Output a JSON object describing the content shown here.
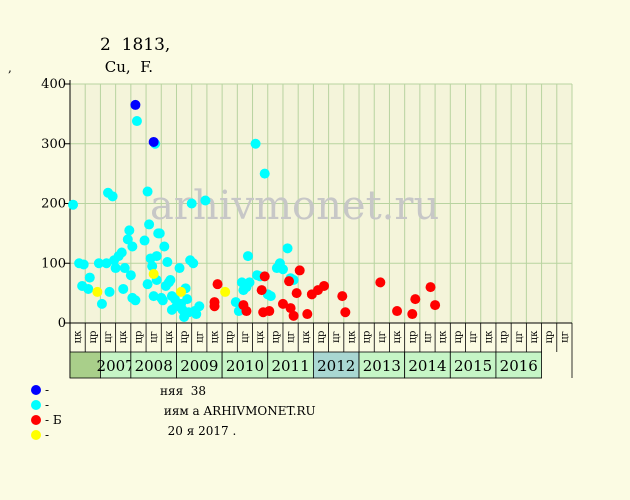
{
  "header": {
    "title": "2 \u0006\u0006\u0006\u0006 1813, \u0006\u0006\u0006 \u0006",
    "subtitle": "\u0006\u0006\u0006 Cu, \u0006\u0006\u0006 F.",
    "y_unit": "\u0006\u0006, \u0006\u0006"
  },
  "watermark": "arhivmonet.ru",
  "legend": {
    "items": [
      {
        "label": "- \u0006\u0006\u0006",
        "color": "#0000ff"
      },
      {
        "label": "- \u0006\u0006\u0006",
        "color": "#00ffff"
      },
      {
        "label": "- \u0006\u0006\u0006\u0006\u0006Б",
        "color": "#ff0000"
      },
      {
        "label": "- \u0006\u0006",
        "color": "#ffff00"
      }
    ]
  },
  "footer": {
    "line1": "\u0006\u0006\u0006\u0006\u0006няя \u0006\u0006 38 \u0006\u0006",
    "line2": "\u0006 \u0006\u0006\u0006\u0006\u0006иям \u0006\u0006а ARHIVMONET.RU",
    "line3": "\u0006\u0006\u0006 \u0006 20 \u0006я 2017 \u0006\u0006."
  },
  "chart_data": {
    "type": "scatter",
    "ylim": [
      0,
      400
    ],
    "yticks": [
      0,
      100,
      200,
      300,
      400
    ],
    "grid": true,
    "categories": [
      "цк",
      "цр",
      "цг",
      "цк",
      "цр",
      "цг",
      "цк",
      "цр",
      "цг",
      "цк",
      "цр",
      "цг",
      "цк",
      "цр",
      "цг",
      "цк",
      "цр",
      "цг",
      "цк",
      "цр",
      "цг",
      "цк",
      "цр",
      "цг",
      "цк",
      "цр",
      "цг",
      "цк",
      "цр",
      "цг",
      "цк",
      "цр",
      "цг"
    ],
    "years": [
      {
        "label": "2007",
        "start": 0,
        "span": 2,
        "color": "#c6f5c6"
      },
      {
        "label": "2008",
        "start": 2,
        "span": 3,
        "color": "#c6f5c6"
      },
      {
        "label": "2009",
        "start": 5,
        "span": 3,
        "color": "#c6f5c6"
      },
      {
        "label": "2010",
        "start": 8,
        "span": 3,
        "color": "#c6f5c6"
      },
      {
        "label": "2011",
        "start": 11,
        "span": 3,
        "color": "#c6f5c6"
      },
      {
        "label": "2012",
        "start": 14,
        "span": 3,
        "color": "#a9d7d2"
      },
      {
        "label": "2013",
        "start": 17,
        "span": 3,
        "color": "#c6f5c6"
      },
      {
        "label": "2014",
        "start": 20,
        "span": 3,
        "color": "#c6f5c6"
      },
      {
        "label": "2015",
        "start": 23,
        "span": 3,
        "color": "#c6f5c6"
      },
      {
        "label": "2016",
        "start": 26,
        "span": 3,
        "color": "#c6f5c6"
      }
    ],
    "first_cell_color": "#a9cf8a",
    "series": [
      {
        "color": "#0000ff",
        "points": [
          [
            4.3,
            365
          ],
          [
            5.5,
            303
          ]
        ]
      },
      {
        "color": "#00ffff",
        "points": [
          [
            0.2,
            198
          ],
          [
            0.6,
            100
          ],
          [
            0.9,
            98
          ],
          [
            0.8,
            62
          ],
          [
            1.2,
            57
          ],
          [
            1.3,
            76
          ],
          [
            1.9,
            100
          ],
          [
            2.1,
            32
          ],
          [
            2.4,
            100
          ],
          [
            2.6,
            52
          ],
          [
            2.5,
            218
          ],
          [
            2.8,
            212
          ],
          [
            2.9,
            105
          ],
          [
            3.0,
            92
          ],
          [
            3.2,
            112
          ],
          [
            3.4,
            118
          ],
          [
            3.5,
            57
          ],
          [
            3.6,
            92
          ],
          [
            3.8,
            140
          ],
          [
            3.9,
            155
          ],
          [
            4.1,
            128
          ],
          [
            4.0,
            80
          ],
          [
            4.1,
            42
          ],
          [
            4.3,
            38
          ],
          [
            4.4,
            338
          ],
          [
            4.9,
            138
          ],
          [
            5.1,
            220
          ],
          [
            5.2,
            165
          ],
          [
            5.3,
            108
          ],
          [
            5.1,
            65
          ],
          [
            5.4,
            95
          ],
          [
            5.5,
            45
          ],
          [
            5.6,
            300
          ],
          [
            5.7,
            72
          ],
          [
            5.7,
            112
          ],
          [
            5.8,
            150
          ],
          [
            5.9,
            150
          ],
          [
            6.0,
            42
          ],
          [
            6.1,
            38
          ],
          [
            6.2,
            128
          ],
          [
            6.3,
            62
          ],
          [
            6.4,
            102
          ],
          [
            6.5,
            68
          ],
          [
            6.6,
            72
          ],
          [
            6.7,
            45
          ],
          [
            6.7,
            22
          ],
          [
            6.9,
            40
          ],
          [
            7.0,
            28
          ],
          [
            7.2,
            92
          ],
          [
            7.3,
            32
          ],
          [
            7.4,
            22
          ],
          [
            7.5,
            10
          ],
          [
            7.6,
            58
          ],
          [
            7.7,
            40
          ],
          [
            7.8,
            18
          ],
          [
            7.9,
            105
          ],
          [
            8.0,
            200
          ],
          [
            8.1,
            100
          ],
          [
            8.2,
            20
          ],
          [
            8.3,
            15
          ],
          [
            8.5,
            28
          ],
          [
            8.9,
            205
          ],
          [
            10.9,
            35
          ],
          [
            11.1,
            20
          ],
          [
            11.3,
            68
          ],
          [
            11.4,
            55
          ],
          [
            11.6,
            60
          ],
          [
            11.7,
            112
          ],
          [
            11.8,
            68
          ],
          [
            12.2,
            300
          ],
          [
            12.3,
            80
          ],
          [
            12.5,
            78
          ],
          [
            12.8,
            250
          ],
          [
            13.0,
            48
          ],
          [
            13.2,
            45
          ],
          [
            13.6,
            92
          ],
          [
            13.8,
            100
          ],
          [
            14.0,
            90
          ],
          [
            14.3,
            125
          ],
          [
            14.5,
            75
          ],
          [
            14.7,
            72
          ]
        ]
      },
      {
        "color": "#ff0000",
        "points": [
          [
            9.7,
            65
          ],
          [
            9.5,
            28
          ],
          [
            9.5,
            35
          ],
          [
            11.4,
            30
          ],
          [
            11.6,
            20
          ],
          [
            12.6,
            55
          ],
          [
            12.7,
            18
          ],
          [
            12.8,
            78
          ],
          [
            13.1,
            20
          ],
          [
            14.0,
            32
          ],
          [
            14.4,
            70
          ],
          [
            14.5,
            25
          ],
          [
            14.7,
            12
          ],
          [
            14.9,
            50
          ],
          [
            15.1,
            88
          ],
          [
            15.6,
            15
          ],
          [
            15.9,
            48
          ],
          [
            16.3,
            55
          ],
          [
            16.7,
            62
          ],
          [
            17.9,
            45
          ],
          [
            18.1,
            18
          ],
          [
            20.4,
            68
          ],
          [
            21.5,
            20
          ],
          [
            22.5,
            15
          ],
          [
            22.7,
            40
          ],
          [
            23.7,
            60
          ],
          [
            24.0,
            30
          ]
        ]
      },
      {
        "color": "#ffff00",
        "points": [
          [
            1.8,
            52
          ],
          [
            5.5,
            82
          ],
          [
            7.3,
            52
          ],
          [
            10.2,
            52
          ]
        ]
      }
    ]
  }
}
